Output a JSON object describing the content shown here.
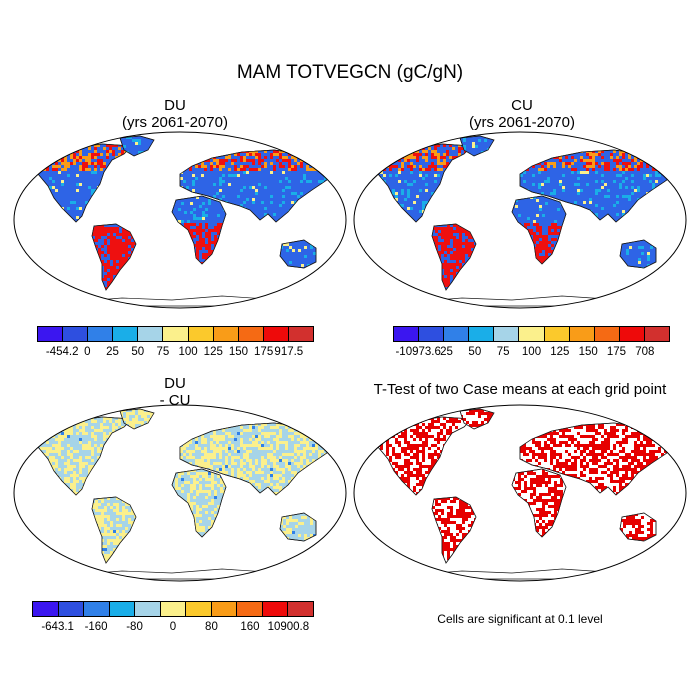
{
  "figure": {
    "title": "MAM TOTVEGCN (gC/gN)"
  },
  "panels": [
    {
      "id": "du",
      "title": "DU",
      "subtitle": "(yrs 2061-2070)",
      "style": "diverging"
    },
    {
      "id": "cu",
      "title": "CU",
      "subtitle": "(yrs 2061-2070)",
      "style": "diverging"
    },
    {
      "id": "diff",
      "title": "DU",
      "subtitle": "- CU",
      "style": "difference"
    },
    {
      "id": "ttest",
      "title": "T-Test of two Case means at each grid point",
      "subtitle": "",
      "style": "ttest"
    }
  ],
  "colorbars": [
    {
      "id": "du",
      "colors": [
        "#3b16f0",
        "#2e4fe0",
        "#3080e8",
        "#1aaee8",
        "#a6d4e8",
        "#fbf08c",
        "#fbc92c",
        "#f99c18",
        "#f56a14",
        "#ee0a0a",
        "#d2302e"
      ],
      "labels": [
        "-454.2",
        "0",
        "25",
        "50",
        "75",
        "100",
        "125",
        "150",
        "175",
        "917.5"
      ]
    },
    {
      "id": "cu",
      "colors": [
        "#3b16f0",
        "#2e4fe0",
        "#3080e8",
        "#1aaee8",
        "#a6d4e8",
        "#fbf08c",
        "#fbc92c",
        "#f99c18",
        "#f56a14",
        "#ee0a0a",
        "#d2302e"
      ],
      "labels": [
        "-10973.6",
        "25",
        "50",
        "75",
        "100",
        "125",
        "150",
        "175",
        "708"
      ]
    },
    {
      "id": "diff",
      "colors": [
        "#3b16f0",
        "#2e4fe0",
        "#3080e8",
        "#1aaee8",
        "#a6d4e8",
        "#fbf08c",
        "#fbc92c",
        "#f99c18",
        "#f56a14",
        "#ee0a0a",
        "#d2302e"
      ],
      "labels": [
        "-643.1",
        "-160",
        "-80",
        "0",
        "80",
        "160",
        "10900.8"
      ]
    }
  ],
  "significance_note": "Cells are significant at 0.1 level",
  "colors": {
    "ocean": "#ffffff",
    "land_low": "#2e64e6",
    "land_mid": "#1aaee8",
    "land_high": "#ee1010",
    "diff_blue": "#a6d4e8",
    "diff_yellow": "#fbf08c",
    "sig_red": "#e60000",
    "coast": "#1a1a1a"
  }
}
